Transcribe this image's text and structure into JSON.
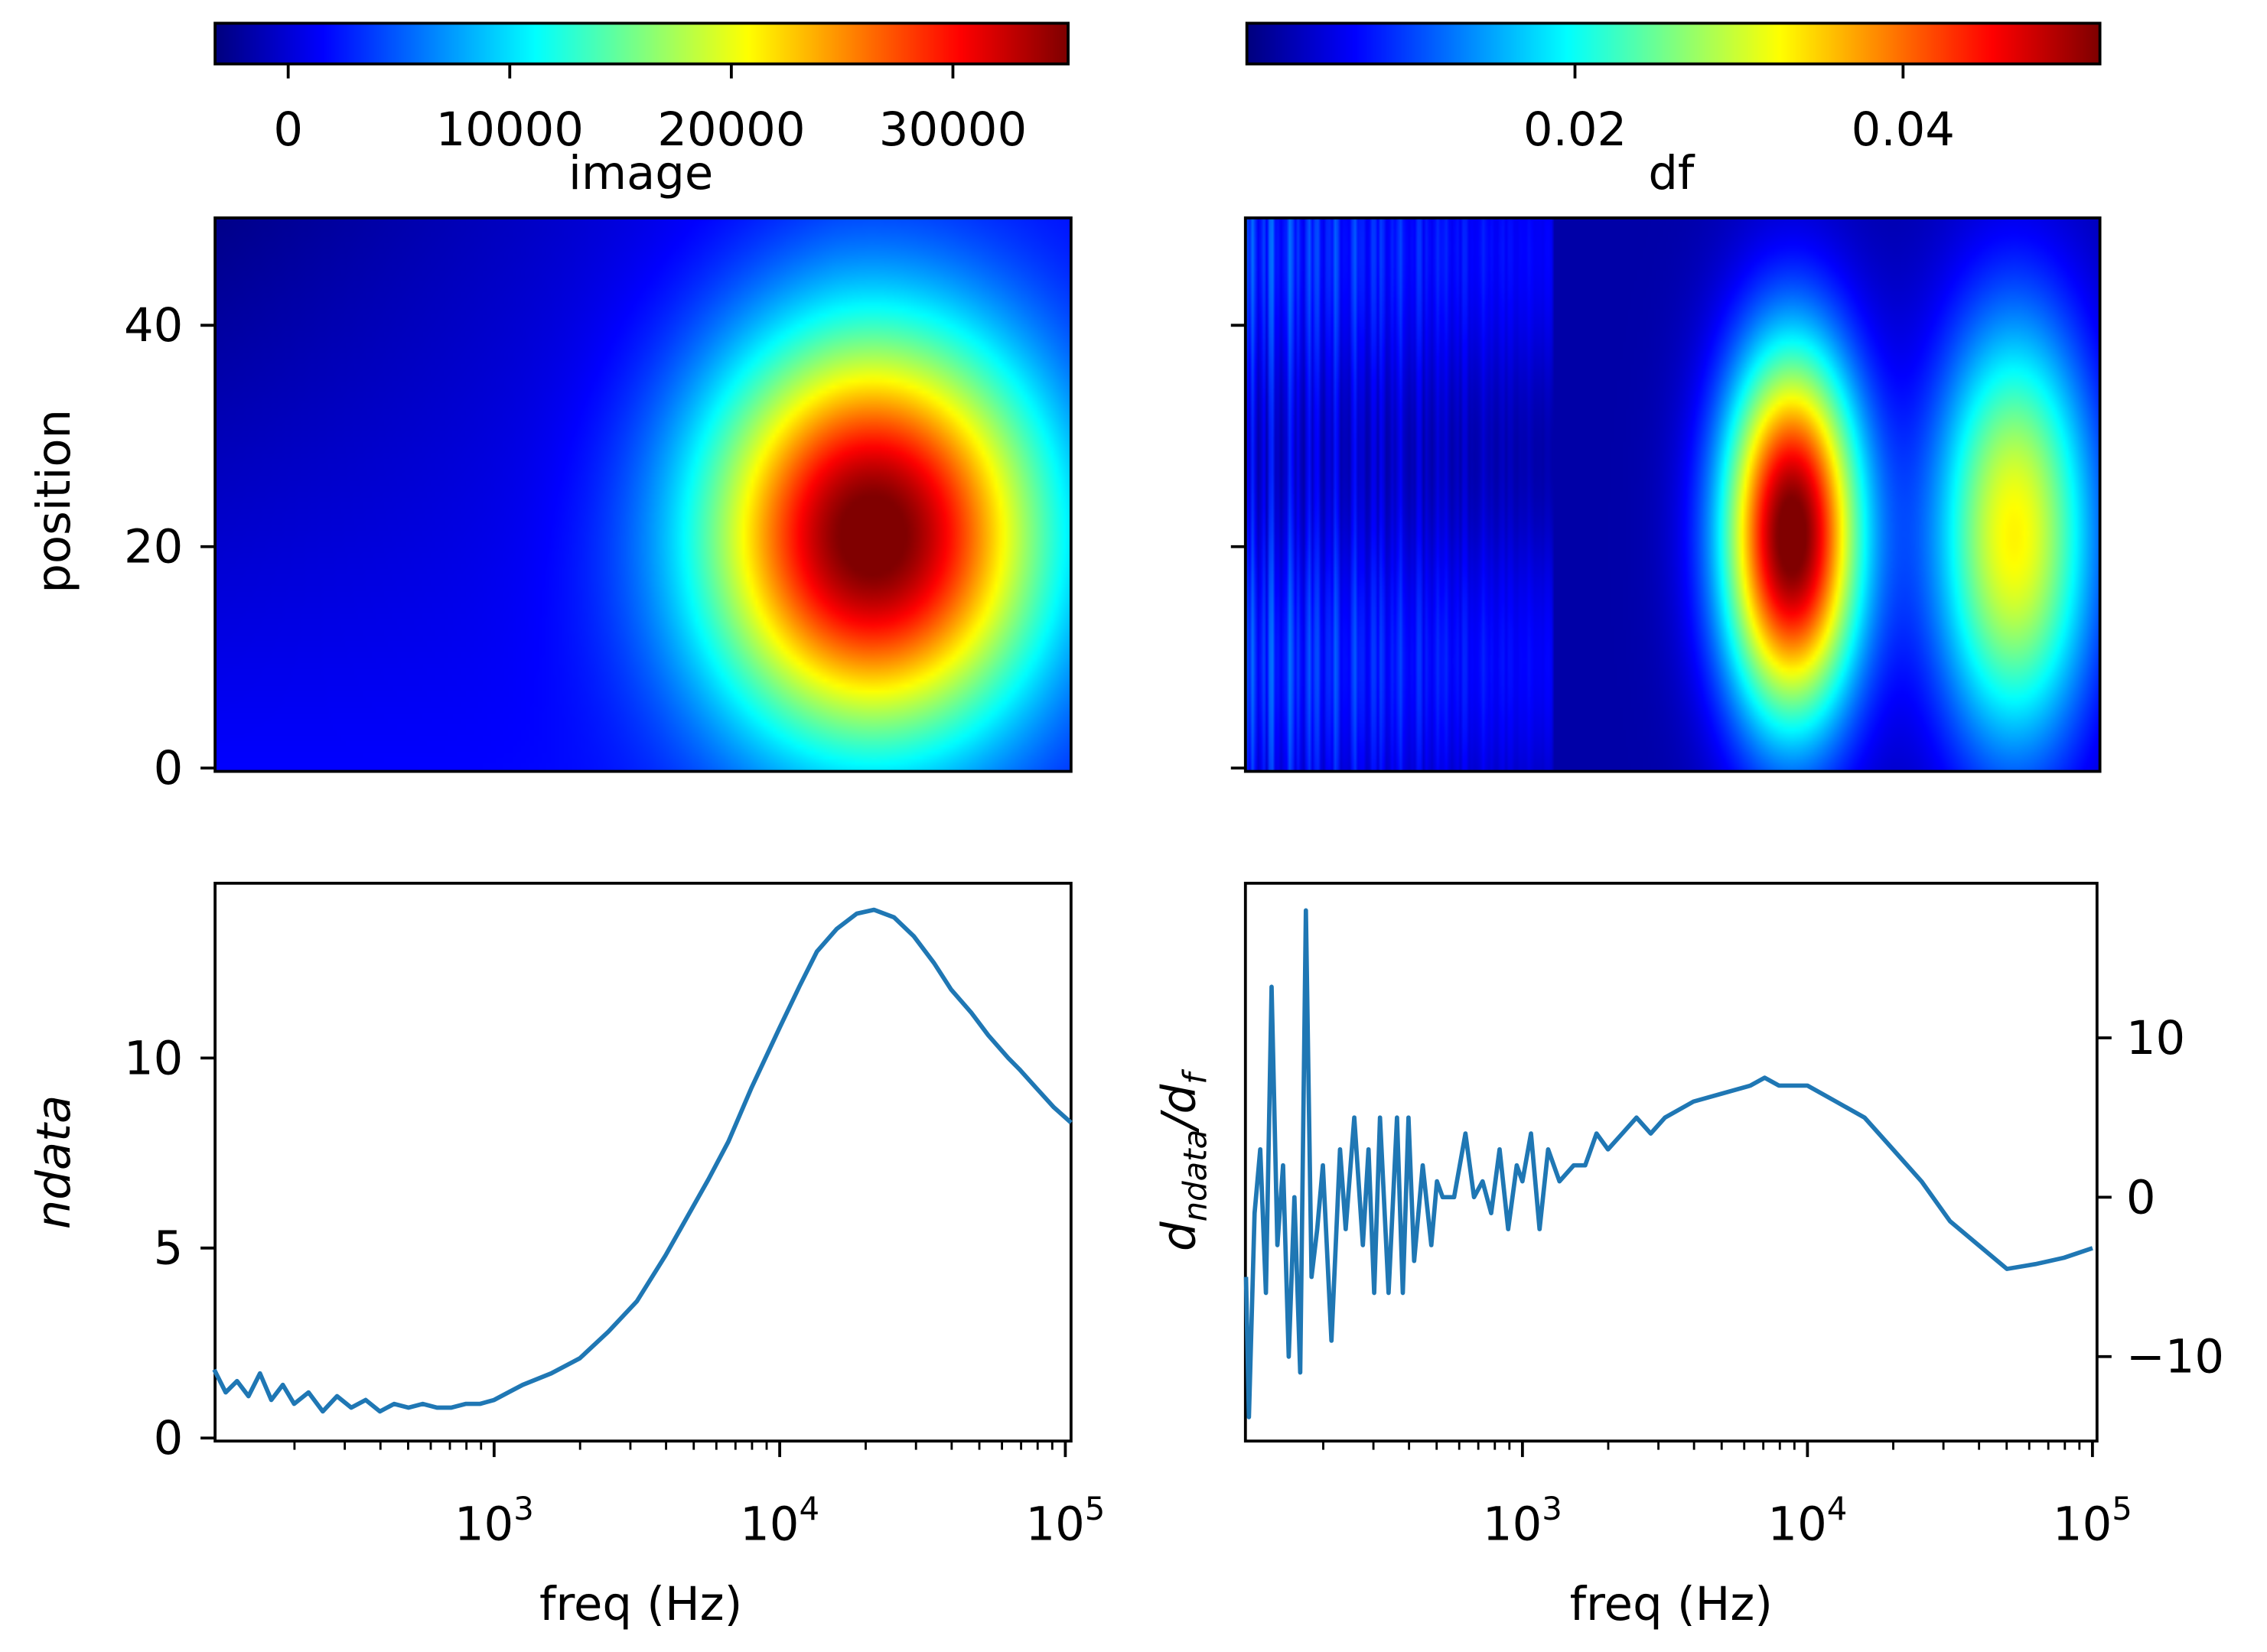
{
  "chart_data": [
    {
      "type": "heatmap",
      "name": "image",
      "colorbar": {
        "label": "image",
        "range": [
          -3300,
          35200
        ],
        "ticks": [
          0,
          10000,
          20000,
          30000
        ],
        "tick_labels": [
          "0",
          "10000",
          "20000",
          "30000"
        ],
        "colormap": "jet",
        "placement": "top"
      },
      "ylabel": "position",
      "ylim": [
        -0.3,
        49.7
      ],
      "yticks": [
        0,
        20,
        40
      ],
      "ytick_labels": [
        "0",
        "20",
        "40"
      ],
      "xscale": "log",
      "xlim_log10": [
        2.023,
        5.02
      ],
      "model": {
        "peak_log10_freq": 4.33,
        "peak_position": 21,
        "peak_value": 35000,
        "sigma_log10_freq": 0.42,
        "sigma_position": 13,
        "baseline": 1500
      }
    },
    {
      "type": "heatmap",
      "name": "df",
      "colorbar": {
        "label": "df",
        "range": [
          0.0,
          0.052
        ],
        "ticks": [
          0.02,
          0.04
        ],
        "tick_labels": [
          "0.02",
          "0.04"
        ],
        "colormap": "jet",
        "placement": "top"
      },
      "ylim": [
        -0.3,
        49.7
      ],
      "yticks": [
        0,
        20,
        40
      ],
      "xscale": "log",
      "xlim_log10": [
        2.028,
        5.016
      ],
      "model": {
        "peaks": [
          {
            "log10_freq": 3.94,
            "position": 21,
            "value": 0.052,
            "sigma_log10_freq": 0.17,
            "sigma_position": 12
          },
          {
            "log10_freq": 4.72,
            "position": 21,
            "value": 0.031,
            "sigma_log10_freq": 0.2,
            "sigma_position": 14
          }
        ],
        "noisy_below_log10_freq": 3.1
      }
    },
    {
      "type": "line",
      "name": "ndata",
      "xlabel": "freq (Hz)",
      "ylabel": "ndata",
      "xscale": "log",
      "xlim_log10": [
        2.023,
        5.02
      ],
      "ylim": [
        -0.08,
        14.6
      ],
      "xticks": [
        {
          "base": "10",
          "exp": "3"
        },
        {
          "base": "10",
          "exp": "4"
        },
        {
          "base": "10",
          "exp": "5"
        }
      ],
      "xtick_log10": [
        3,
        4,
        5
      ],
      "yticks": [
        0,
        5,
        10
      ],
      "ytick_labels": [
        "0",
        "5",
        "10"
      ],
      "color": "#1f77b4",
      "log10_x": [
        2.02,
        2.06,
        2.1,
        2.14,
        2.18,
        2.22,
        2.26,
        2.3,
        2.35,
        2.4,
        2.45,
        2.5,
        2.55,
        2.6,
        2.65,
        2.7,
        2.75,
        2.8,
        2.85,
        2.9,
        2.95,
        3.0,
        3.05,
        3.1,
        3.2,
        3.3,
        3.4,
        3.5,
        3.6,
        3.66,
        3.75,
        3.82,
        3.9,
        4.0,
        4.07,
        4.13,
        4.2,
        4.27,
        4.33,
        4.4,
        4.47,
        4.54,
        4.6,
        4.67,
        4.73,
        4.8,
        4.84,
        4.9,
        4.96,
        5.02
      ],
      "y": [
        1.8,
        1.2,
        1.5,
        1.1,
        1.7,
        1.0,
        1.4,
        0.9,
        1.2,
        0.7,
        1.1,
        0.8,
        1.0,
        0.7,
        0.9,
        0.8,
        0.9,
        0.8,
        0.8,
        0.9,
        0.9,
        1.0,
        1.2,
        1.4,
        1.7,
        2.1,
        2.8,
        3.6,
        4.8,
        5.6,
        6.8,
        7.8,
        9.2,
        10.8,
        11.9,
        12.8,
        13.4,
        13.8,
        13.9,
        13.7,
        13.2,
        12.5,
        11.8,
        11.2,
        10.6,
        10.0,
        9.7,
        9.2,
        8.7,
        8.3
      ]
    },
    {
      "type": "line",
      "name": "dndata_df",
      "xlabel": "freq (Hz)",
      "ylabel_main": "d",
      "ylabel_sub": "ndata",
      "ylabel_sep": "/d",
      "ylabel_sub2": "f",
      "xscale": "log",
      "xlim_log10": [
        2.028,
        5.016
      ],
      "ylim": [
        -15.3,
        19.7
      ],
      "xticks": [
        {
          "base": "10",
          "exp": "3"
        },
        {
          "base": "10",
          "exp": "4"
        },
        {
          "base": "10",
          "exp": "5"
        }
      ],
      "xtick_log10": [
        3,
        4,
        5
      ],
      "yticks": [
        -10,
        0,
        10
      ],
      "ytick_labels": [
        "−10",
        "0",
        "10"
      ],
      "yaxis_side": "right",
      "color": "#1f77b4",
      "log10_x": [
        2.03,
        2.04,
        2.06,
        2.08,
        2.1,
        2.12,
        2.14,
        2.16,
        2.18,
        2.2,
        2.22,
        2.24,
        2.26,
        2.28,
        2.3,
        2.33,
        2.36,
        2.38,
        2.41,
        2.44,
        2.46,
        2.48,
        2.5,
        2.53,
        2.56,
        2.58,
        2.6,
        2.62,
        2.65,
        2.68,
        2.7,
        2.72,
        2.76,
        2.8,
        2.83,
        2.86,
        2.89,
        2.92,
        2.95,
        2.98,
        3.0,
        3.03,
        3.06,
        3.09,
        3.13,
        3.18,
        3.22,
        3.26,
        3.3,
        3.35,
        3.4,
        3.45,
        3.5,
        3.6,
        3.7,
        3.8,
        3.85,
        3.9,
        4.0,
        4.05,
        4.1,
        4.2,
        4.3,
        4.4,
        4.5,
        4.6,
        4.7,
        4.8,
        4.9,
        5.0
      ],
      "y": [
        -5,
        -13.8,
        -1,
        3,
        -6,
        13.2,
        -3,
        2,
        -10,
        0,
        -11,
        18,
        -5,
        -2,
        2,
        -9,
        3,
        -2,
        5,
        -3,
        3,
        -6,
        5,
        -6,
        5,
        -6,
        5,
        -4,
        2,
        -3,
        1,
        0,
        0,
        4,
        0,
        1,
        -1,
        3,
        -2,
        2,
        1,
        4,
        -2,
        3,
        1,
        2,
        2,
        4,
        3,
        4,
        5,
        4,
        5,
        6,
        6.5,
        7,
        7.5,
        7,
        7,
        6.5,
        6,
        5,
        3,
        1,
        -1.5,
        -3,
        -4.5,
        -4.2,
        -3.8,
        -3.2
      ]
    }
  ]
}
